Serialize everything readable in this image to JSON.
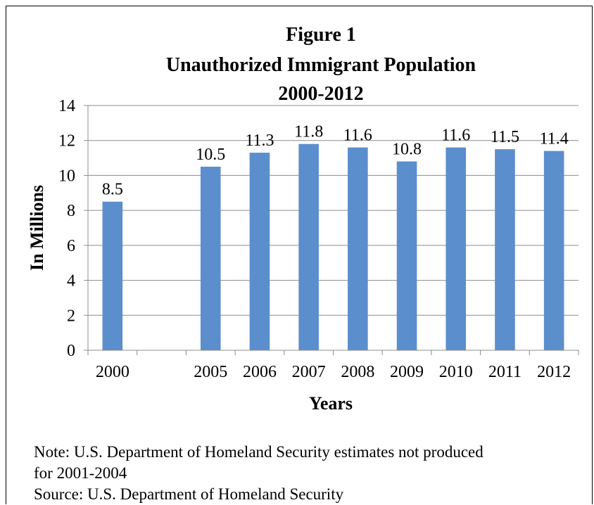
{
  "chart_data": {
    "type": "bar",
    "title": [
      "Figure 1",
      "Unauthorized Immigrant Population",
      "2000-2012"
    ],
    "xlabel": "Years",
    "ylabel": "In Millions",
    "categories": [
      "2000",
      "",
      "2005",
      "2006",
      "2007",
      "2008",
      "2009",
      "2010",
      "2011",
      "2012"
    ],
    "values": [
      8.5,
      null,
      10.5,
      11.3,
      11.8,
      11.6,
      10.8,
      11.6,
      11.5,
      11.4
    ],
    "data_labels": [
      "8.5",
      "",
      "10.5",
      "11.3",
      "11.8",
      "11.6",
      "10.8",
      "11.6",
      "11.5",
      "11.4"
    ],
    "ylim": [
      0,
      14
    ],
    "yticks": [
      0,
      2,
      4,
      6,
      8,
      10,
      12,
      14
    ],
    "grid": true,
    "bar_color": "#5B8ECC"
  },
  "notes": {
    "note_line1": "Note:  U.S. Department of Homeland Security estimates not produced",
    "note_line2": "for 2001-2004",
    "source": "Source:  U.S. Department of Homeland Security"
  }
}
